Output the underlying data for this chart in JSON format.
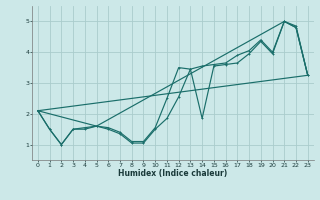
{
  "xlabel": "Humidex (Indice chaleur)",
  "xlim": [
    -0.5,
    23.5
  ],
  "ylim": [
    0.5,
    5.5
  ],
  "yticks": [
    1,
    2,
    3,
    4,
    5
  ],
  "xticks": [
    0,
    1,
    2,
    3,
    4,
    5,
    6,
    7,
    8,
    9,
    10,
    11,
    12,
    13,
    14,
    15,
    16,
    17,
    18,
    19,
    20,
    21,
    22,
    23
  ],
  "bg_color": "#cce8e8",
  "grid_color": "#aacccc",
  "line_color": "#1a6e6a",
  "line1_x": [
    0,
    1,
    2,
    3,
    4,
    5,
    6,
    7,
    8,
    9,
    10,
    11,
    12,
    13,
    14,
    15,
    16,
    17,
    18,
    19,
    20,
    21,
    22,
    23
  ],
  "line1_y": [
    2.1,
    1.5,
    1.0,
    1.5,
    1.5,
    1.6,
    1.5,
    1.35,
    1.05,
    1.05,
    1.5,
    1.85,
    2.55,
    3.45,
    1.85,
    3.55,
    3.6,
    3.65,
    3.95,
    4.35,
    3.95,
    5.0,
    4.8,
    3.25
  ],
  "line2_x": [
    0,
    1,
    2,
    3,
    4,
    5,
    6,
    7,
    8,
    9,
    10,
    11,
    12,
    13,
    14,
    15,
    16,
    17,
    18,
    19,
    20,
    21,
    22,
    23
  ],
  "line2_y": [
    2.1,
    1.5,
    1.0,
    1.5,
    1.55,
    1.6,
    1.55,
    1.4,
    1.1,
    1.1,
    1.55,
    2.5,
    3.5,
    3.45,
    3.55,
    3.6,
    3.65,
    3.9,
    4.05,
    4.4,
    4.0,
    5.0,
    4.85,
    3.25
  ],
  "line3_x": [
    0,
    5,
    21,
    22,
    23
  ],
  "line3_y": [
    2.1,
    1.6,
    5.0,
    4.8,
    3.25
  ],
  "line4_x": [
    0,
    23
  ],
  "line4_y": [
    2.1,
    3.25
  ]
}
